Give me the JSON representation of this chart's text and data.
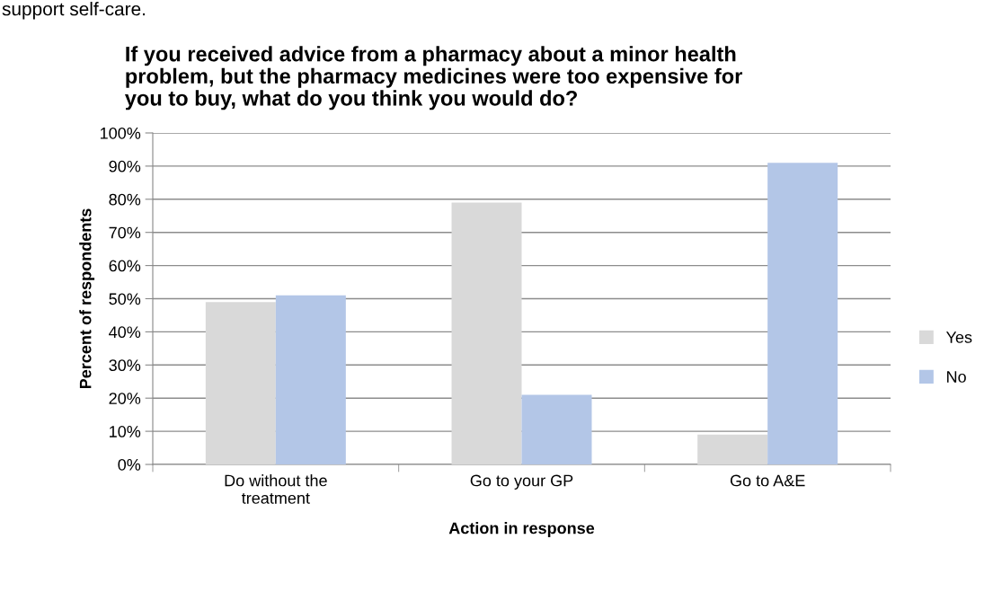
{
  "chart_data": {
    "type": "bar",
    "title": "If you received advice from a pharmacy about a minor health\nproblem, but the pharmacy medicines were too expensive for\nyou to buy, what do you think you would do?",
    "xlabel": "Action in response",
    "ylabel": "Percent of respondents",
    "annotations": [
      "support self-care."
    ],
    "categories": [
      "Do without the\ntreatment",
      "Go to your GP",
      "Go to A&E"
    ],
    "series": [
      {
        "name": "Yes",
        "color": "#d9d9d9",
        "values": [
          49,
          79,
          9
        ]
      },
      {
        "name": "No",
        "color": "#b3c6e7",
        "values": [
          51,
          21,
          91
        ]
      }
    ],
    "ylim": [
      0,
      100
    ],
    "yticks": [
      {
        "value": 0,
        "label": "0%"
      },
      {
        "value": 10,
        "label": "10%"
      },
      {
        "value": 20,
        "label": "20%"
      },
      {
        "value": 30,
        "label": "30%"
      },
      {
        "value": 40,
        "label": "40%"
      },
      {
        "value": 50,
        "label": "50%"
      },
      {
        "value": 60,
        "label": "60%"
      },
      {
        "value": 70,
        "label": "70%"
      },
      {
        "value": 80,
        "label": "80%"
      },
      {
        "value": 90,
        "label": "90%"
      },
      {
        "value": 100,
        "label": "100%"
      }
    ],
    "grid": "y",
    "legend": "right"
  }
}
